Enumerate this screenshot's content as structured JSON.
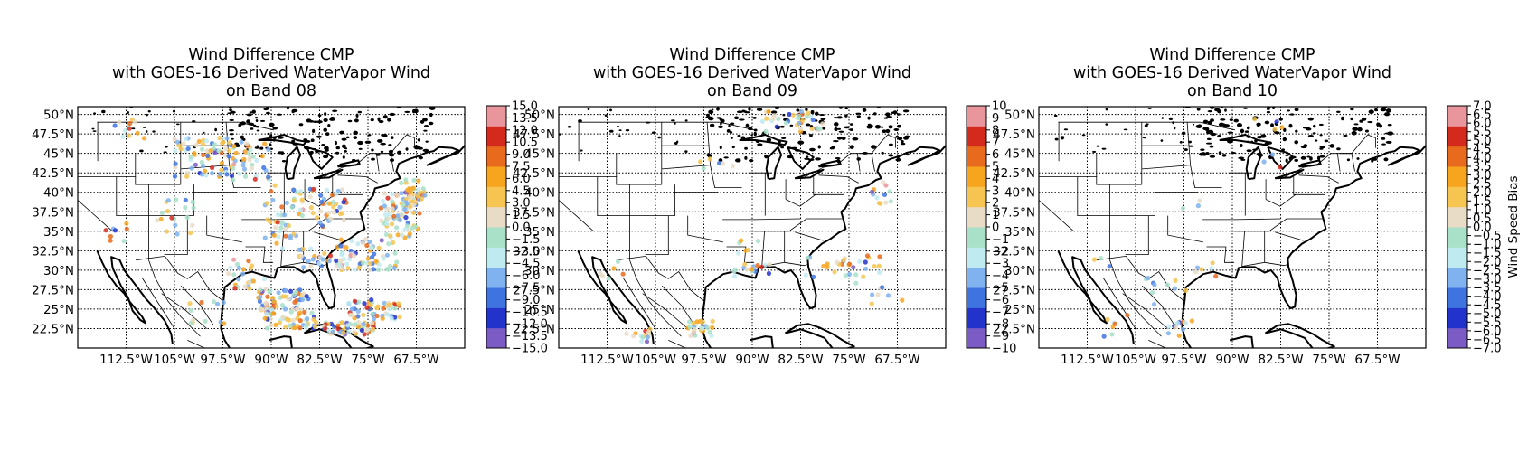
{
  "figure": {
    "panels": [
      {
        "title_lines": [
          "Wind Difference CMP",
          "with GOES-16 Derived WaterVapor Wind",
          "on Band 08"
        ],
        "colorbar_ticks": [
          "15.0",
          "13.5",
          "12.0",
          "10.5",
          "9.0",
          "7.5",
          "6.0",
          "4.5",
          "3.0",
          "1.5",
          "0.0",
          "−1.5",
          "−3.0",
          "−4.5",
          "−6.0",
          "−7.5",
          "−9.0",
          "−10.5",
          "−12.0",
          "−13.5",
          "−15.0"
        ],
        "colorbar_range": [
          -15,
          15
        ],
        "colorbar_label": ""
      },
      {
        "title_lines": [
          "Wind Difference CMP",
          "with GOES-16 Derived WaterVapor Wind",
          "on Band 09"
        ],
        "colorbar_ticks": [
          "10",
          "9",
          "8",
          "7",
          "6",
          "5",
          "4",
          "3",
          "2",
          "1",
          "0",
          "−1",
          "−2",
          "−3",
          "−4",
          "−5",
          "−6",
          "−7",
          "−8",
          "−9",
          "−10"
        ],
        "colorbar_range": [
          -10,
          10
        ],
        "colorbar_label": ""
      },
      {
        "title_lines": [
          "Wind Difference CMP",
          "with GOES-16 Derived WaterVapor Wind",
          "on Band 10"
        ],
        "colorbar_ticks": [
          "7.0",
          "6.5",
          "6.0",
          "5.5",
          "5.0",
          "4.5",
          "4.0",
          "3.5",
          "3.0",
          "2.5",
          "2.0",
          "1.5",
          "1.0",
          "0.5",
          "0.0",
          "−0.5",
          "−1.0",
          "−1.5",
          "−2.0",
          "−2.5",
          "−3.0",
          "−3.5",
          "−4.0",
          "−4.5",
          "−5.0",
          "−5.5",
          "−6.0",
          "−6.5",
          "−7.0"
        ],
        "colorbar_range": [
          -7,
          7
        ],
        "colorbar_label": "Wind Speed Bias"
      }
    ],
    "lat_labels": [
      "50°N",
      "47.5°N",
      "45°N",
      "42.5°N",
      "40°N",
      "37.5°N",
      "35°N",
      "32.5°N",
      "30°N",
      "27.5°N",
      "25°N",
      "22.5°N"
    ],
    "lon_labels": [
      "112.5°W",
      "105°W",
      "97.5°W",
      "90°W",
      "82.5°W",
      "75°W",
      "67.5°W"
    ],
    "colormap": [
      "#7b5cc4",
      "#2233cc",
      "#3f74e0",
      "#7fb2ee",
      "#bfeaf0",
      "#a8e0c8",
      "#e9dcc6",
      "#f5c451",
      "#f7a51e",
      "#e86a1c",
      "#d42a1e",
      "#e8959c"
    ],
    "grid": true,
    "map_extent_lon": [
      -120,
      -60
    ],
    "map_extent_lat": [
      20,
      51
    ]
  }
}
